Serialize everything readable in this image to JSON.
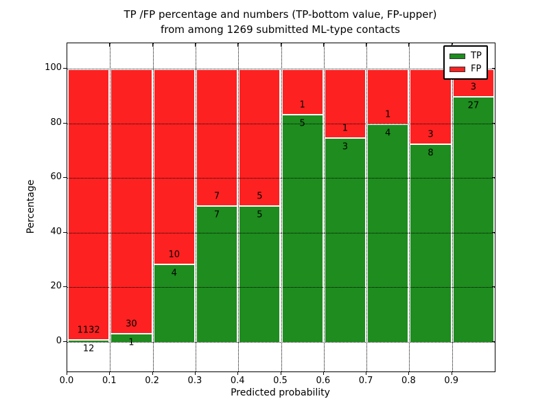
{
  "title": {
    "line1": "TP /FP percentage and numbers (TP-bottom value, FP-upper)",
    "line2": "from among 1269 submitted ML-type contacts"
  },
  "axes": {
    "xlabel": "Predicted probability",
    "ylabel": "Percentage",
    "xtick_labels": [
      "0.0",
      "0.1",
      "0.2",
      "0.3",
      "0.4",
      "0.5",
      "0.6",
      "0.7",
      "0.8",
      "0.9"
    ],
    "ytick_values": [
      0,
      20,
      40,
      60,
      80,
      100
    ]
  },
  "legend": {
    "items": [
      {
        "label": "TP",
        "color": "#1e8c1e"
      },
      {
        "label": "FP",
        "color": "#fd2121"
      }
    ]
  },
  "chart_data": {
    "type": "bar",
    "stacked": true,
    "normalized_to_percent": true,
    "title": "TP /FP percentage and numbers (TP-bottom value, FP-upper) from among 1269 submitted ML-type contacts",
    "xlabel": "Predicted probability",
    "ylabel": "Percentage",
    "bin_starts": [
      0.0,
      0.1,
      0.2,
      0.3,
      0.4,
      0.5,
      0.6,
      0.7,
      0.8,
      0.9
    ],
    "bin_width": 0.1,
    "series": [
      {
        "name": "TP",
        "color": "#1e8c1e",
        "counts": [
          12,
          1,
          4,
          7,
          5,
          5,
          3,
          4,
          8,
          27
        ]
      },
      {
        "name": "FP",
        "color": "#fd2121",
        "counts": [
          1132,
          30,
          10,
          7,
          5,
          1,
          1,
          1,
          3,
          3
        ]
      }
    ],
    "tp_percent": [
      1.05,
      3.23,
      28.57,
      50.0,
      50.0,
      83.33,
      75.0,
      80.0,
      72.73,
      90.0
    ],
    "total_contacts": 1269,
    "ylim": [
      0,
      100
    ],
    "grid": "dotted-black",
    "legend_position": "upper-right",
    "bar_edge_color": "#ffffff"
  }
}
